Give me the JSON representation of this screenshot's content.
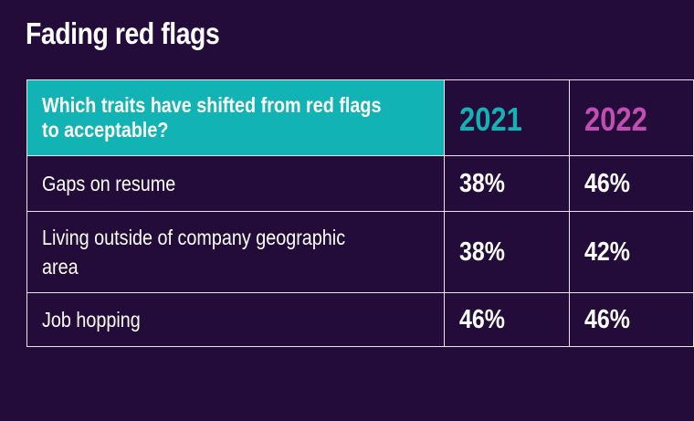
{
  "title": "Fading red flags",
  "table": {
    "question": "Which traits have shifted from red flags to acceptable?",
    "columns": [
      "2021",
      "2022"
    ],
    "rows": [
      {
        "label": "Gaps on resume",
        "y2021": "38%",
        "y2022": "46%"
      },
      {
        "label": "Living outside of company geographic area",
        "y2021": "38%",
        "y2022": "42%"
      },
      {
        "label": "Job hopping",
        "y2021": "46%",
        "y2022": "46%"
      }
    ]
  },
  "colors": {
    "background": "#230b3a",
    "teal_accent": "#12b3b5",
    "magenta_accent": "#c14fb2",
    "text": "#ffffff",
    "border": "#e9e4ef"
  }
}
